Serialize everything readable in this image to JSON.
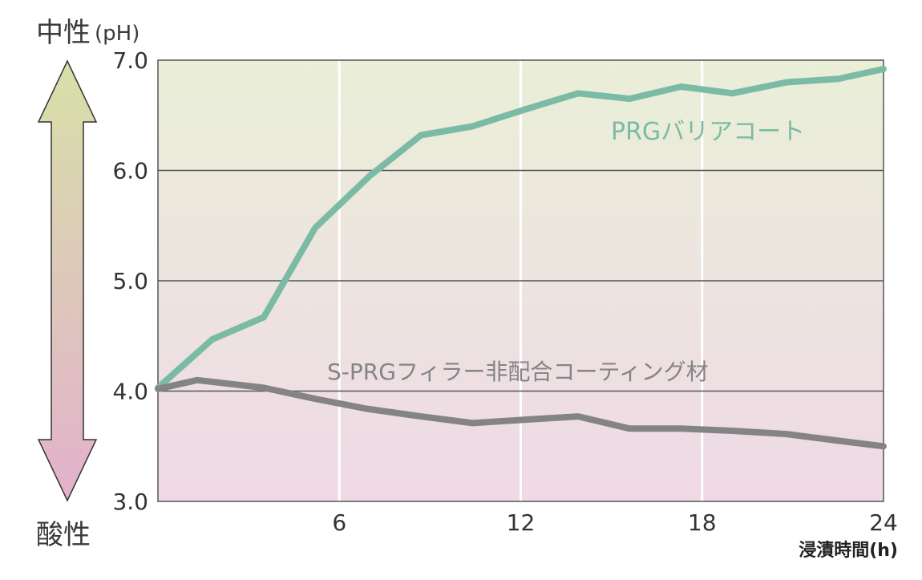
{
  "chart_data": {
    "type": "line",
    "ylabel_top_main": "中性",
    "ylabel_top_unit": "(pH)",
    "ylabel_bottom": "酸性",
    "xlabel": "浸漬時間(h)",
    "xlim": [
      0,
      24
    ],
    "ylim": [
      3.0,
      7.0
    ],
    "x_ticks": [
      6,
      12,
      18,
      24
    ],
    "x_tick_labels": [
      "6",
      "12",
      "18",
      "24"
    ],
    "y_ticks": [
      3.0,
      4.0,
      5.0,
      6.0,
      7.0
    ],
    "y_tick_labels": [
      "3.0",
      "4.0",
      "5.0",
      "6.0",
      "7.0"
    ],
    "grid": true,
    "series": [
      {
        "name": "PRGバリアコート",
        "color": "#7bbba5",
        "points": [
          [
            0,
            4.03
          ],
          [
            1.8,
            4.47
          ],
          [
            3.5,
            4.67
          ],
          [
            5.2,
            5.48
          ],
          [
            7.0,
            5.95
          ],
          [
            8.7,
            6.32
          ],
          [
            10.4,
            6.4
          ],
          [
            12.1,
            6.55
          ],
          [
            13.9,
            6.7
          ],
          [
            15.6,
            6.65
          ],
          [
            17.3,
            6.76
          ],
          [
            19.0,
            6.7
          ],
          [
            20.8,
            6.8
          ],
          [
            22.5,
            6.83
          ],
          [
            24,
            6.92
          ]
        ]
      },
      {
        "name": "S-PRGフィラー非配合コーティング材",
        "color": "#848484",
        "points": [
          [
            0,
            4.02
          ],
          [
            1.3,
            4.1
          ],
          [
            3.5,
            4.03
          ],
          [
            5.2,
            3.93
          ],
          [
            6.9,
            3.84
          ],
          [
            8.7,
            3.77
          ],
          [
            10.4,
            3.71
          ],
          [
            12.1,
            3.74
          ],
          [
            13.9,
            3.77
          ],
          [
            15.6,
            3.66
          ],
          [
            17.3,
            3.66
          ],
          [
            19.0,
            3.64
          ],
          [
            20.8,
            3.61
          ],
          [
            22.5,
            3.55
          ],
          [
            24,
            3.5
          ]
        ]
      }
    ],
    "colors": {
      "plot_top": "#eaefd8",
      "plot_bottom": "#efd9e6",
      "arrow_top": "#d7e0a8",
      "arrow_bottom": "#e3b1cc",
      "gridline_h": "#555555",
      "gridline_v": "#ffffff"
    }
  }
}
